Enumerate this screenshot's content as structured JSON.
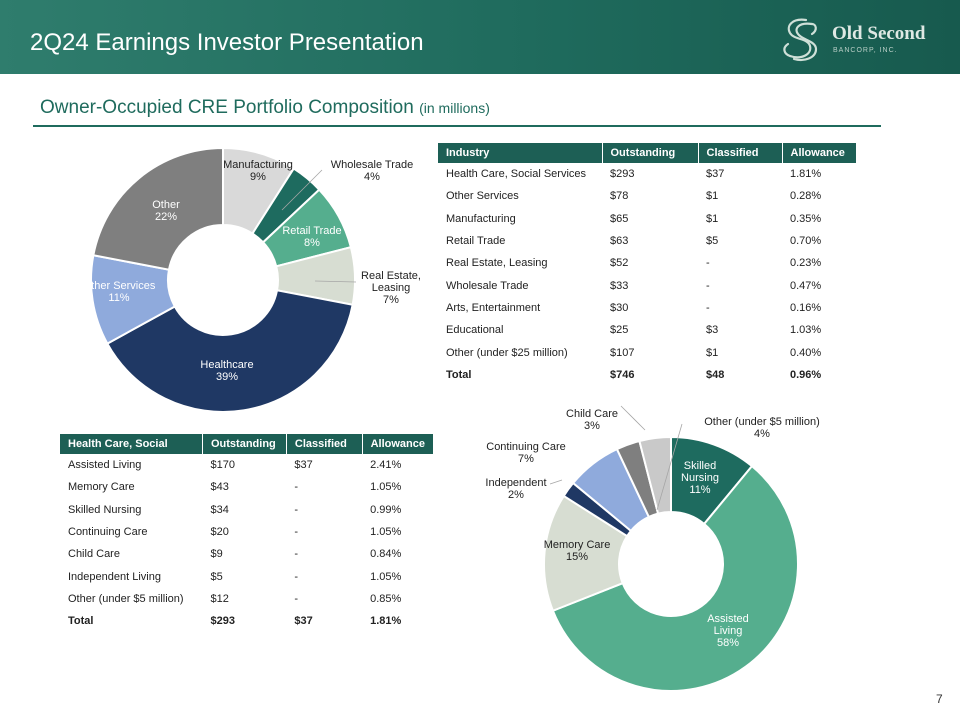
{
  "header": {
    "title": "2Q24 Earnings Investor Presentation"
  },
  "logo": {
    "name": "Old Second",
    "sub": "BANCORP, INC.",
    "icon": "interlocked-s-logo-icon"
  },
  "section": {
    "title": "Owner-Occupied  CRE Portfolio Composition",
    "unit": "(in millions)"
  },
  "industry_table": {
    "headers": [
      "Industry",
      "Outstanding",
      "Classified",
      "Allowance"
    ],
    "rows": [
      [
        "Health Care, Social Services",
        "$293",
        "$37",
        "1.81%"
      ],
      [
        "Other Services",
        "$78",
        "$1",
        "0.28%"
      ],
      [
        "Manufacturing",
        "$65",
        "$1",
        "0.35%"
      ],
      [
        "Retail Trade",
        "$63",
        "$5",
        "0.70%"
      ],
      [
        "Real Estate, Leasing",
        "$52",
        "-",
        "0.23%"
      ],
      [
        "Wholesale Trade",
        "$33",
        "-",
        "0.47%"
      ],
      [
        "Arts, Entertainment",
        "$30",
        "-",
        "0.16%"
      ],
      [
        "Educational",
        "$25",
        "$3",
        "1.03%"
      ],
      [
        "Other (under $25 million)",
        "$107",
        "$1",
        "0.40%"
      ],
      [
        "Total",
        "$746",
        "$48",
        "0.96%"
      ]
    ]
  },
  "healthcare_table": {
    "headers": [
      "Health Care, Social",
      "Outstanding",
      "Classified",
      "Allowance"
    ],
    "rows": [
      [
        "Assisted Living",
        "$170",
        "$37",
        "2.41%"
      ],
      [
        "Memory Care",
        "$43",
        "-",
        "1.05%"
      ],
      [
        "Skilled Nursing",
        "$34",
        "-",
        "0.99%"
      ],
      [
        "Continuing Care",
        "$20",
        "-",
        "1.05%"
      ],
      [
        "Child Care",
        "$9",
        "-",
        "0.84%"
      ],
      [
        "Independent Living",
        "$5",
        "-",
        "1.05%"
      ],
      [
        "Other (under $5 million)",
        "$12",
        "-",
        "0.85%"
      ],
      [
        "Total",
        "$293",
        "$37",
        "1.81%"
      ]
    ]
  },
  "chart_data": [
    {
      "type": "pie",
      "title": "",
      "labels": [
        "Manufacturing",
        "Wholesale Trade",
        "Retail Trade",
        "Real Estate, Leasing",
        "Healthcare",
        "Other Services",
        "Other"
      ],
      "display_lines": [
        [
          "Manufacturing",
          "9%"
        ],
        [
          "Wholesale Trade",
          "4%"
        ],
        [
          "Retail Trade",
          "8%"
        ],
        [
          "Real Estate,",
          "Leasing",
          "7%"
        ],
        [
          "Healthcare",
          "39%"
        ],
        [
          "Other Services",
          "11%"
        ],
        [
          "Other",
          "22%"
        ]
      ],
      "values": [
        9,
        4,
        8,
        7,
        39,
        11,
        22
      ],
      "colors": [
        "#d9d9d9",
        "#1e6b5f",
        "#55ae8e",
        "#d7ddd2",
        "#1f3864",
        "#8faadc",
        "#7f7f7f"
      ],
      "donut": true
    },
    {
      "type": "pie",
      "title": "",
      "labels": [
        "Skilled Nursing",
        "Assisted Living",
        "Memory Care",
        "Independent",
        "Continuing Care",
        "Child Care",
        "Other (under $5 million)"
      ],
      "display_lines": [
        [
          "Skilled",
          "Nursing",
          "11%"
        ],
        [
          "Assisted",
          "Living",
          "58%"
        ],
        [
          "Memory Care",
          "15%"
        ],
        [
          "Independent",
          "2%"
        ],
        [
          "Continuing Care",
          "7%"
        ],
        [
          "Child Care",
          "3%"
        ],
        [
          "Other (under $5 million)",
          "4%"
        ]
      ],
      "values": [
        11,
        58,
        15,
        2,
        7,
        3,
        4
      ],
      "colors": [
        "#1e6b5f",
        "#55ae8e",
        "#d7ddd2",
        "#1f3864",
        "#8faadc",
        "#7f7f7f",
        "#c9c9c9"
      ],
      "donut": true
    }
  ],
  "page_number": "7"
}
